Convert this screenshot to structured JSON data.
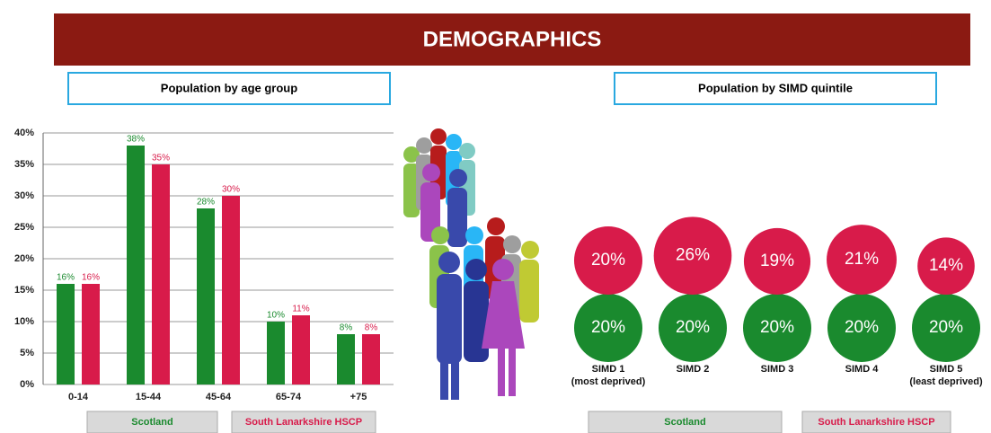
{
  "header": {
    "title": "DEMOGRAPHICS"
  },
  "chart_data": [
    {
      "type": "bar",
      "title": "Population by age group",
      "categories": [
        "0-14",
        "15-44",
        "45-64",
        "65-74",
        "+75"
      ],
      "series": [
        {
          "name": "Scotland",
          "color": "#1a8a2e",
          "values": [
            16,
            38,
            28,
            10,
            8
          ],
          "value_labels": [
            "16%",
            "38%",
            "28%",
            "10%",
            "8%"
          ]
        },
        {
          "name": "South Lanarkshire HSCP",
          "color": "#d81b4a",
          "values": [
            16,
            35,
            30,
            11,
            8
          ],
          "value_labels": [
            "16%",
            "35%",
            "30%",
            "11%",
            "8%"
          ]
        }
      ],
      "ylim": [
        0,
        40
      ],
      "yticks": [
        {
          "value": 0,
          "label": "0%"
        },
        {
          "value": 5,
          "label": "5%"
        },
        {
          "value": 10,
          "label": "10%"
        },
        {
          "value": 15,
          "label": "15%"
        },
        {
          "value": 20,
          "label": "20%"
        },
        {
          "value": 25,
          "label": "25%"
        },
        {
          "value": 30,
          "label": "30%"
        },
        {
          "value": 35,
          "label": "35%"
        },
        {
          "value": 40,
          "label": "40%"
        }
      ],
      "grid": true
    },
    {
      "type": "bubble",
      "title": "Population by SIMD quintile",
      "categories": [
        "SIMD 1\n(most deprived)",
        "SIMD 2",
        "SIMD 3",
        "SIMD 4",
        "SIMD 5\n(least deprived)"
      ],
      "series": [
        {
          "name": "Scotland",
          "color": "#1a8a2e",
          "values": [
            20,
            20,
            20,
            20,
            20
          ],
          "value_labels": [
            "20%",
            "20%",
            "20%",
            "20%",
            "20%"
          ]
        },
        {
          "name": "South Lanarkshire HSCP",
          "color": "#d81b4a",
          "values": [
            20,
            26,
            19,
            21,
            14
          ],
          "value_labels": [
            "20%",
            "26%",
            "19%",
            "21%",
            "14%"
          ]
        }
      ]
    }
  ]
}
